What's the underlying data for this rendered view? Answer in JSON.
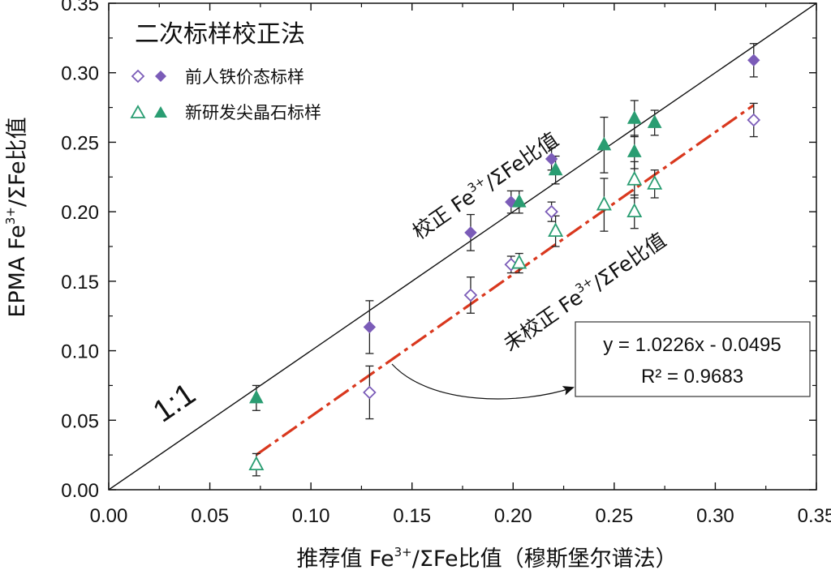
{
  "chart_data": {
    "type": "scatter",
    "title": "二次标样校正法",
    "xlabel_prefix": "推荐值 Fe",
    "xlabel_sup": "3+",
    "xlabel_suffix": "/ΣFe比值（穆斯堡尔谱法）",
    "ylabel_prefix": "EPMA Fe",
    "ylabel_sup": "3+",
    "ylabel_suffix": "/ΣFe比值",
    "xlim": [
      0,
      0.35
    ],
    "ylim": [
      0,
      0.35
    ],
    "x_ticks": [
      "0.00",
      "0.05",
      "0.10",
      "0.15",
      "0.20",
      "0.25",
      "0.30",
      "0.35"
    ],
    "y_ticks": [
      "0.00",
      "0.05",
      "0.10",
      "0.15",
      "0.20",
      "0.25",
      "0.30",
      "0.35"
    ],
    "grid": false,
    "legend_position": "top-left",
    "legend": [
      {
        "label": "前人铁价态标样",
        "marker": "diamond",
        "color": "#7b5cb8"
      },
      {
        "label": "新研发尖晶石标样",
        "marker": "triangle",
        "color": "#2a9d72"
      }
    ],
    "series": [
      {
        "name": "前人铁价态标样",
        "state": "corrected",
        "marker": "diamond-filled",
        "color": "#7b5cb8",
        "points": [
          {
            "x": 0.129,
            "y": 0.117,
            "err": 0.019
          },
          {
            "x": 0.179,
            "y": 0.185,
            "err": 0.013
          },
          {
            "x": 0.199,
            "y": 0.207,
            "err": 0.008
          },
          {
            "x": 0.219,
            "y": 0.238,
            "err": 0.008
          },
          {
            "x": 0.319,
            "y": 0.309,
            "err": 0.012
          }
        ]
      },
      {
        "name": "前人铁价态标样",
        "state": "uncorrected",
        "marker": "diamond-open",
        "color": "#7b5cb8",
        "points": [
          {
            "x": 0.129,
            "y": 0.07,
            "err": 0.019
          },
          {
            "x": 0.179,
            "y": 0.14,
            "err": 0.013
          },
          {
            "x": 0.199,
            "y": 0.162,
            "err": 0.006
          },
          {
            "x": 0.219,
            "y": 0.2,
            "err": 0.007
          },
          {
            "x": 0.319,
            "y": 0.266,
            "err": 0.012
          }
        ]
      },
      {
        "name": "新研发尖晶石标样",
        "state": "corrected",
        "marker": "triangle-filled",
        "color": "#2a9d72",
        "points": [
          {
            "x": 0.073,
            "y": 0.066,
            "err": 0.009
          },
          {
            "x": 0.203,
            "y": 0.207,
            "err": 0.008
          },
          {
            "x": 0.221,
            "y": 0.23,
            "err": 0.01
          },
          {
            "x": 0.245,
            "y": 0.248,
            "err": 0.02
          },
          {
            "x": 0.26,
            "y": 0.267,
            "err": 0.013
          },
          {
            "x": 0.26,
            "y": 0.243,
            "err": 0.012
          },
          {
            "x": 0.27,
            "y": 0.264,
            "err": 0.009
          }
        ]
      },
      {
        "name": "新研发尖晶石标样",
        "state": "uncorrected",
        "marker": "triangle-open",
        "color": "#2a9d72",
        "points": [
          {
            "x": 0.073,
            "y": 0.018,
            "err": 0.008
          },
          {
            "x": 0.203,
            "y": 0.163,
            "err": 0.007
          },
          {
            "x": 0.221,
            "y": 0.186,
            "err": 0.011
          },
          {
            "x": 0.245,
            "y": 0.205,
            "err": 0.019
          },
          {
            "x": 0.26,
            "y": 0.223,
            "err": 0.013
          },
          {
            "x": 0.26,
            "y": 0.2,
            "err": 0.012
          },
          {
            "x": 0.27,
            "y": 0.22,
            "err": 0.01
          }
        ]
      }
    ],
    "reference_line": {
      "label": "1:1",
      "x": [
        0,
        0.35
      ],
      "y": [
        0,
        0.35
      ],
      "color": "#111111"
    },
    "regression_line": {
      "slope": 1.0226,
      "intercept": -0.0495,
      "x_range": [
        0.073,
        0.319
      ],
      "color": "#d9381e",
      "style": "dashed"
    },
    "annotations": {
      "corrected_label": "校正 Fe",
      "uncorrected_label": "未校正 Fe",
      "ratio_sup": "3+",
      "ratio_suffix": "/ΣFe比值",
      "one_to_one": "1:1",
      "equation": "y = 1.0226x - 0.0495",
      "r2": "R² = 0.9683"
    }
  }
}
